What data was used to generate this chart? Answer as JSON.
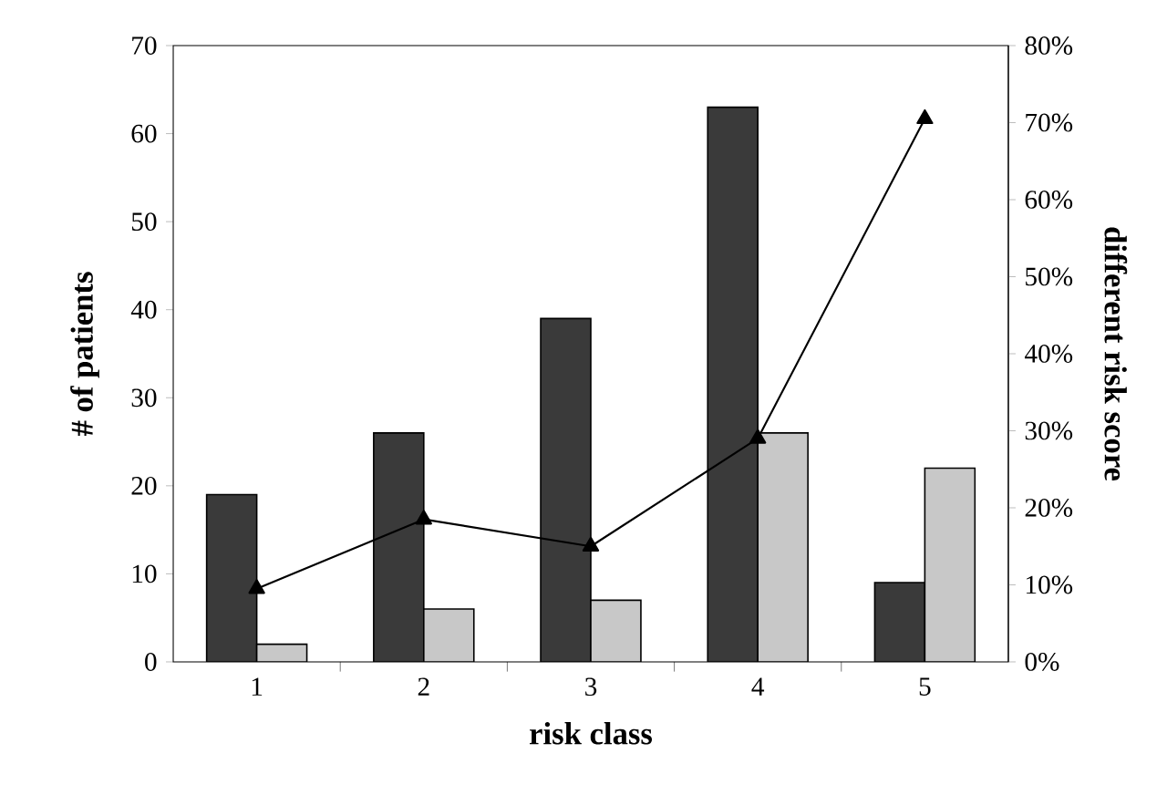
{
  "chart_data": {
    "type": "bar",
    "xlabel": "risk class",
    "ylabel": "# of patients",
    "y2label": "different risk score",
    "categories": [
      "1",
      "2",
      "3",
      "4",
      "5"
    ],
    "series": [
      {
        "color": "#3a3a3a",
        "values": [
          19,
          26,
          39,
          63,
          9
        ]
      },
      {
        "color": "#c8c8c8",
        "values": [
          2,
          6,
          7,
          26,
          22
        ]
      },
      {
        "type": "line",
        "axis": "y2",
        "marker": "triangle",
        "color": "#000000",
        "values": [
          9.5,
          18.5,
          15,
          29,
          70.5
        ]
      }
    ],
    "ylim": [
      0,
      70
    ],
    "yticks": [
      0,
      10,
      20,
      30,
      40,
      50,
      60,
      70
    ],
    "y2lim": [
      0,
      80
    ],
    "y2ticks": [
      {
        "value": 0,
        "label": "0%"
      },
      {
        "value": 10,
        "label": "10%"
      },
      {
        "value": 20,
        "label": "20%"
      },
      {
        "value": 30,
        "label": "30%"
      },
      {
        "value": 40,
        "label": "40%"
      },
      {
        "value": 50,
        "label": "50%"
      },
      {
        "value": 60,
        "label": "60%"
      },
      {
        "value": 70,
        "label": "70%"
      },
      {
        "value": 80,
        "label": "80%"
      }
    ]
  }
}
